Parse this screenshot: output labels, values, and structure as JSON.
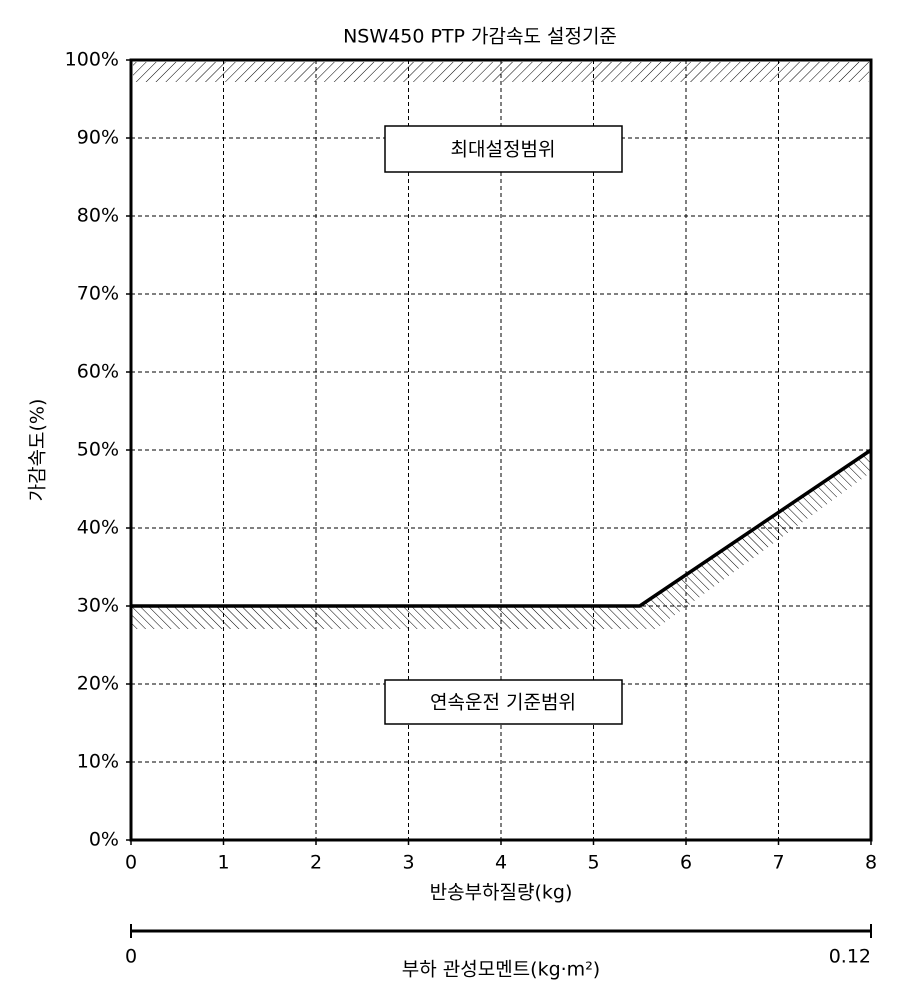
{
  "chart_data": {
    "type": "line",
    "title": "NSW450 PTP 가감속도 설정기준",
    "x_label": "반송부하질량(kg)",
    "y_label": "가감속도(%)",
    "x": [
      0,
      5.5,
      8
    ],
    "series": [
      {
        "name": "가감속도",
        "color": "#000000",
        "values": [
          30,
          30,
          50
        ]
      }
    ],
    "xlim": [
      0,
      8
    ],
    "xticks": [
      0,
      1,
      2,
      3,
      4,
      5,
      6,
      7,
      8
    ],
    "ylim": [
      0,
      100
    ],
    "yticks": [
      {
        "value": 0,
        "label": "0%"
      },
      {
        "value": 10,
        "label": "10%"
      },
      {
        "value": 20,
        "label": "20%"
      },
      {
        "value": 30,
        "label": "30%"
      },
      {
        "value": 40,
        "label": "40%"
      },
      {
        "value": 50,
        "label": "50%"
      },
      {
        "value": 60,
        "label": "60%"
      },
      {
        "value": 70,
        "label": "70%"
      },
      {
        "value": 80,
        "label": "80%"
      },
      {
        "value": 90,
        "label": "90%"
      },
      {
        "value": 100,
        "label": "100%"
      }
    ],
    "x2_label": "부하 관성모멘트(kg·m²)",
    "x2lim": [
      0,
      0.12
    ],
    "x2ticks": [
      0,
      0.12
    ],
    "grid": true,
    "annotations": [
      "최대설정범위",
      "연속운전 기준범위"
    ]
  }
}
